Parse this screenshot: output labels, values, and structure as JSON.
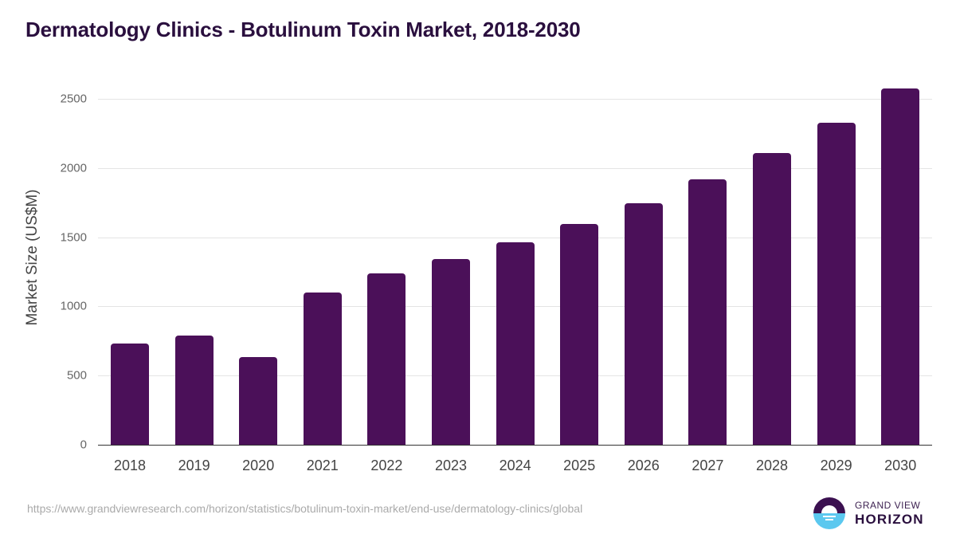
{
  "title": "Dermatology Clinics - Botulinum Toxin Market, 2018-2030",
  "source_url": "https://www.grandviewresearch.com/horizon/statistics/botulinum-toxin-market/end-use/dermatology-clinics/global",
  "logo": {
    "line1": "GRAND VIEW",
    "line2": "HORIZON",
    "icon": "horizon-sunset-icon"
  },
  "colors": {
    "bar": "#4b1059",
    "title": "#2a0f3e",
    "logo_dark": "#3b1050",
    "logo_light": "#5bc8ef"
  },
  "chart_data": {
    "type": "bar",
    "title": "Dermatology Clinics - Botulinum Toxin Market, 2018-2030",
    "xlabel": "",
    "ylabel": "Market Size (US$M)",
    "categories": [
      "2018",
      "2019",
      "2020",
      "2021",
      "2022",
      "2023",
      "2024",
      "2025",
      "2026",
      "2027",
      "2028",
      "2029",
      "2030"
    ],
    "values": [
      732,
      789,
      634,
      1100,
      1239,
      1342,
      1463,
      1596,
      1745,
      1918,
      2108,
      2327,
      2575
    ],
    "ylim": [
      0,
      2500
    ],
    "yticks": [
      "0",
      "500",
      "1000",
      "1500",
      "2000",
      "2500"
    ],
    "grid": true,
    "legend": null
  }
}
